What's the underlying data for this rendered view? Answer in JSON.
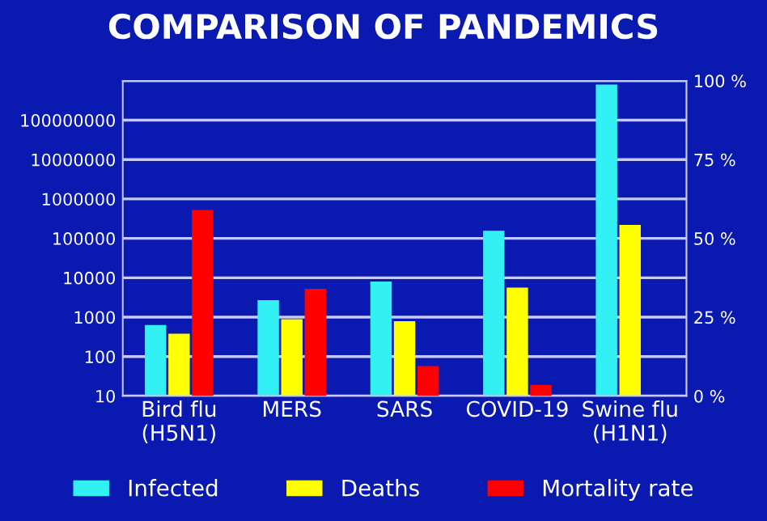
{
  "chart_data": {
    "type": "bar",
    "title": "COMPARISON OF PANDEMICS",
    "categories": [
      "Bird flu\n(H5N1)",
      "MERS",
      "SARS",
      "COVID-19",
      "Swine flu\n(H1N1)"
    ],
    "series": [
      {
        "name": "Infected",
        "color": "#33f0f5",
        "values": [
          630,
          2700,
          8000,
          155000,
          800000000
        ]
      },
      {
        "name": "Deaths",
        "color": "#ffff00",
        "values": [
          380,
          890,
          790,
          5600,
          220000
        ]
      },
      {
        "name": "Mortality rate",
        "color": "#ff0000",
        "axis": "y2",
        "values": [
          59,
          34,
          9.5,
          3.5,
          null
        ]
      }
    ],
    "log": "y",
    "ylim": [
      10,
      1000000000
    ],
    "yticks": [
      10,
      100,
      1000,
      10000,
      100000,
      1000000,
      10000000,
      100000000,
      {
        "value": 1000000000,
        "label": null
      }
    ],
    "y2lim": [
      0,
      100
    ],
    "y2ticks": [
      {
        "value": 0,
        "label": "0 %"
      },
      {
        "value": 25,
        "label": "25 %"
      },
      {
        "value": 50,
        "label": "50 %"
      },
      {
        "value": 75,
        "label": "75 %"
      },
      {
        "value": 100,
        "label": "100 %"
      }
    ],
    "grid": "y",
    "legend": "bottom"
  }
}
